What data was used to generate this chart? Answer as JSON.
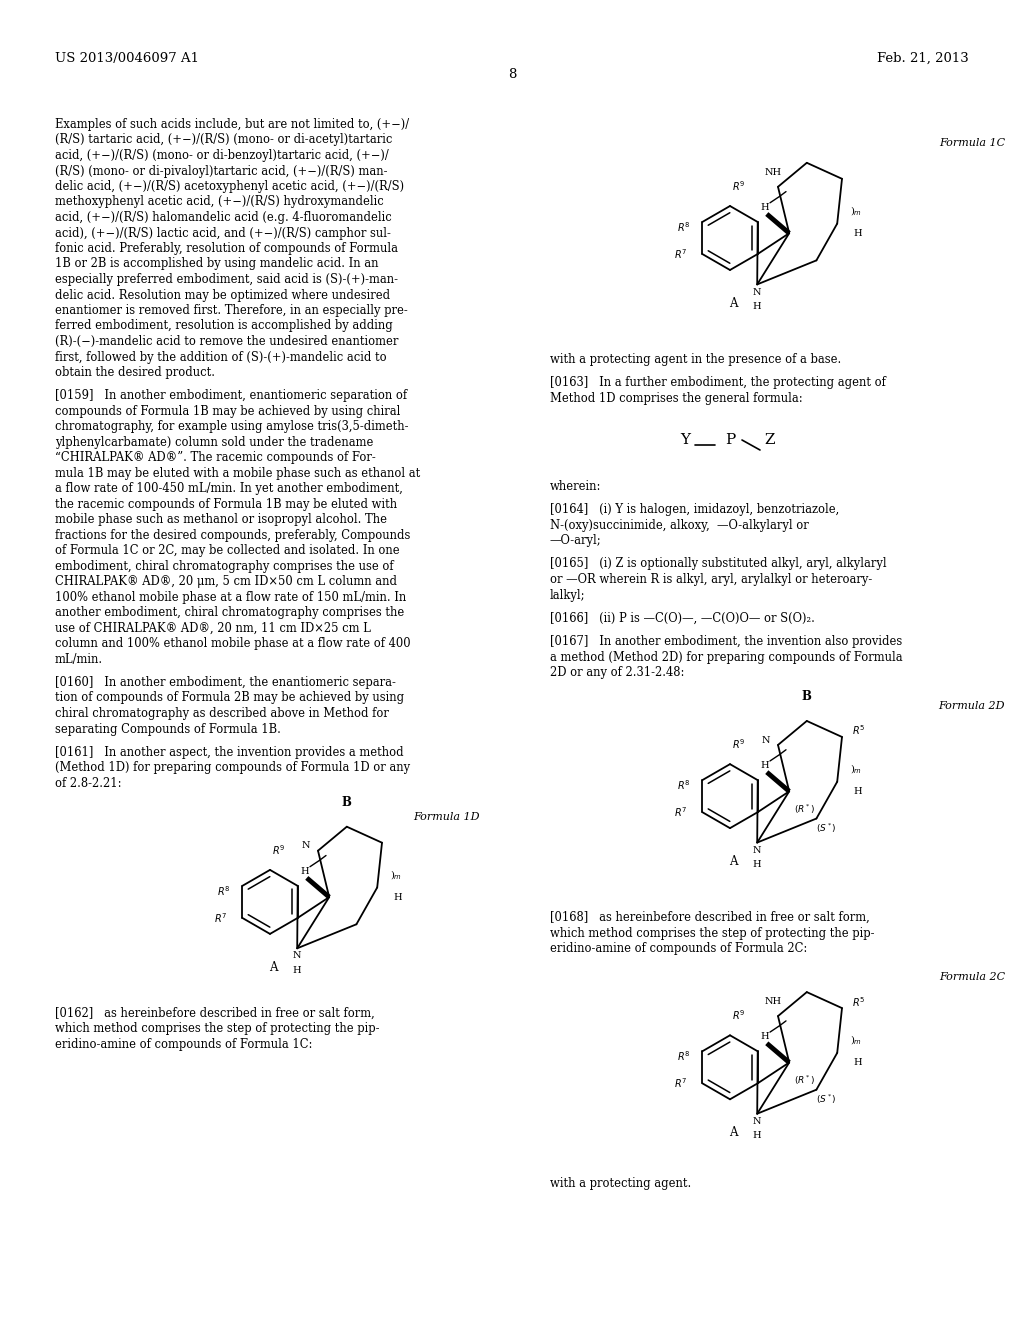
{
  "bg_color": "#ffffff",
  "header_left": "US 2013/0046097 A1",
  "header_right": "Feb. 21, 2013",
  "page_number": "8",
  "para_main": "Examples of such acids include, but are not limited to, (+−)/\n(R/S) tartaric acid, (+−)/(R/S) (mono- or di-acetyl)tartaric\nacid, (+−)/(R/S) (mono- or di-benzoyl)tartaric acid, (+−)/\n(R/S) (mono- or di-pivaloyl)tartaric acid, (+−)/(R/S) man-\ndelic acid, (+−)/(R/S) acetoxyphenyl acetic acid, (+−)/(R/S)\nmethoxyphenyl acetic acid, (+−)/(R/S) hydroxymandelic\nacid, (+−)/(R/S) halomandelic acid (e.g. 4-fluoromandelic\nacid), (+−)/(R/S) lactic acid, and (+−)/(R/S) camphor sul-\nfonic acid. Preferably, resolution of compounds of Formula\n1B or 2B is accomplished by using mandelic acid. In an\nespecially preferred embodiment, said acid is (S)-(+)-man-\ndelic acid. Resolution may be optimized where undesired\nenantiomer is removed first. Therefore, in an especially pre-\nferred embodiment, resolution is accomplished by adding\n(R)-(−)-mandelic acid to remove the undesired enantiomer\nfirst, followed by the addition of (S)-(+)-mandelic acid to\nobtain the desired product.",
  "para0159": "[0159]   In another embodiment, enantiomeric separation of\ncompounds of Formula 1B may be achieved by using chiral\nchromatography, for example using amylose tris(3,5-dimeth-\nylphenylcarbamate) column sold under the tradename\n“CHIRALPAK® AD®”. The racemic compounds of For-\nmula 1B may be eluted with a mobile phase such as ethanol at\na flow rate of 100-450 mL/min. In yet another embodiment,\nthe racemic compounds of Formula 1B may be eluted with\nmobile phase such as methanol or isopropyl alcohol. The\nfractions for the desired compounds, preferably, Compounds\nof Formula 1C or 2C, may be collected and isolated. In one\nembodiment, chiral chromatography comprises the use of\nCHIRALPAK® AD®, 20 μm, 5 cm ID×50 cm L column and\n100% ethanol mobile phase at a flow rate of 150 mL/min. In\nanother embodiment, chiral chromatography comprises the\nuse of CHIRALPAK® AD®, 20 nm, 11 cm ID×25 cm L\ncolumn and 100% ethanol mobile phase at a flow rate of 400\nmL/min.",
  "para0160": "[0160]   In another embodiment, the enantiomeric separa-\ntion of compounds of Formula 2B may be achieved by using\nchiral chromatography as described above in Method for\nseparating Compounds of Formula 1B.",
  "para0161": "[0161]   In another aspect, the invention provides a method\n(Method 1D) for preparing compounds of Formula 1D or any\nof 2.8-2.21:",
  "para0162": "[0162]   as hereinbefore described in free or salt form,\nwhich method comprises the step of protecting the pip-\neridino-amine of compounds of Formula 1C:",
  "para_with_base": "with a protecting agent in the presence of a base.",
  "para0163": "[0163]   In a further embodiment, the protecting agent of\nMethod 1D comprises the general formula:",
  "para_wherein": "wherein:",
  "para0164": "[0164]   (i) Y is halogen, imidazoyl, benzotriazole,\nN-(oxy)succinimide, alkoxy,  —O-alkylaryl or\n—O-aryl;",
  "para0165": "[0165]   (i) Z is optionally substituted alkyl, aryl, alkylaryl\nor —OR wherein R is alkyl, aryl, arylalkyl or heteroary-\nlalkyl;",
  "para0166": "[0166]   (ii) P is —C(O)—, —C(O)O— or S(O)₂.",
  "para0167": "[0167]   In another embodiment, the invention also provides\na method (Method 2D) for preparing compounds of Formula\n2D or any of 2.31-2.48:",
  "para0168": "[0168]   as hereinbefore described in free or salt form,\nwhich method comprises the step of protecting the pip-\neridino-amine of compounds of Formula 2C:",
  "para_with_agent": "with a protecting agent.",
  "formula1C_label": "Formula 1C",
  "formula1D_label": "Formula 1D",
  "formula2D_label": "Formula 2D",
  "formula2C_label": "Formula 2C"
}
